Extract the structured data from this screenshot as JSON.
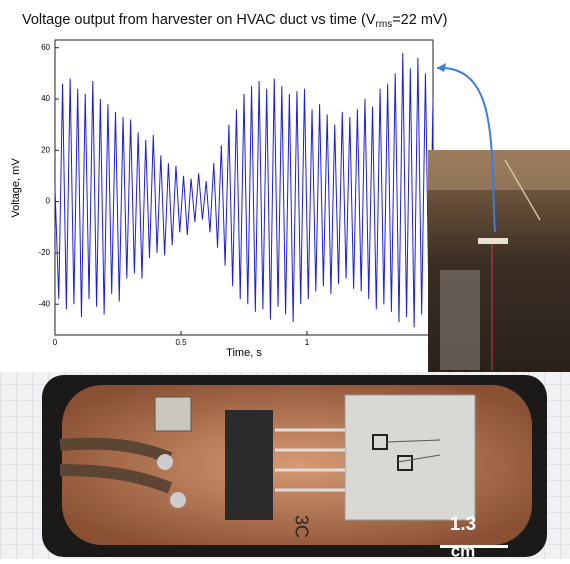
{
  "chart_data": {
    "type": "line",
    "title": [
      "Voltage output from harvester on HVAC duct vs time (V",
      "rms",
      "=22 mV)"
    ],
    "x_label": "Time, s",
    "y_label": "Voltage, mV",
    "color": "#1f1fd6",
    "grid": false,
    "xlim": [
      0,
      1.5
    ],
    "ylim": [
      -52,
      63
    ],
    "xticks": [
      0,
      0.5,
      1
    ],
    "yticks": [
      -40,
      -20,
      0,
      20,
      40,
      60
    ],
    "x": [
      0,
      0.015,
      0.03,
      0.045,
      0.06,
      0.075,
      0.09,
      0.105,
      0.12,
      0.135,
      0.15,
      0.165,
      0.18,
      0.195,
      0.21,
      0.225,
      0.24,
      0.255,
      0.27,
      0.285,
      0.3,
      0.315,
      0.33,
      0.345,
      0.36,
      0.375,
      0.39,
      0.405,
      0.42,
      0.435,
      0.45,
      0.465,
      0.48,
      0.495,
      0.51,
      0.525,
      0.54,
      0.555,
      0.57,
      0.585,
      0.6,
      0.615,
      0.63,
      0.645,
      0.66,
      0.675,
      0.69,
      0.705,
      0.72,
      0.735,
      0.75,
      0.765,
      0.78,
      0.795,
      0.81,
      0.825,
      0.84,
      0.855,
      0.87,
      0.885,
      0.9,
      0.915,
      0.93,
      0.945,
      0.96,
      0.975,
      0.99,
      1.005,
      1.02,
      1.035,
      1.05,
      1.065,
      1.08,
      1.095,
      1.11,
      1.125,
      1.14,
      1.155,
      1.17,
      1.185,
      1.2,
      1.215,
      1.23,
      1.245,
      1.26,
      1.275,
      1.29,
      1.305,
      1.32,
      1.335,
      1.35,
      1.365,
      1.38,
      1.395,
      1.41,
      1.425,
      1.44,
      1.455,
      1.47,
      1.485,
      1.5
    ],
    "values": [
      5,
      -38,
      46,
      -42,
      48,
      -40,
      44,
      -45,
      42,
      -38,
      47,
      -41,
      40,
      -44,
      38,
      -36,
      35,
      -39,
      33,
      -30,
      32,
      -28,
      27,
      -30,
      24,
      -22,
      26,
      -20,
      18,
      -21,
      15,
      -17,
      14,
      -12,
      10,
      -13,
      9,
      -8,
      11,
      -7,
      8,
      -12,
      15,
      -18,
      22,
      -25,
      30,
      -33,
      36,
      -38,
      42,
      -40,
      45,
      -43,
      47,
      -42,
      44,
      -46,
      48,
      -41,
      45,
      -44,
      42,
      -47,
      43,
      -40,
      44,
      -38,
      36,
      -35,
      38,
      -33,
      34,
      -36,
      30,
      -32,
      35,
      -30,
      33,
      -34,
      36,
      -35,
      40,
      -38,
      37,
      -42,
      44,
      -40,
      46,
      -43,
      50,
      -47,
      58,
      -45,
      52,
      -49,
      56,
      -44,
      50,
      -46,
      40
    ],
    "annotations": [
      "3C",
      "1.3",
      "cm"
    ]
  }
}
